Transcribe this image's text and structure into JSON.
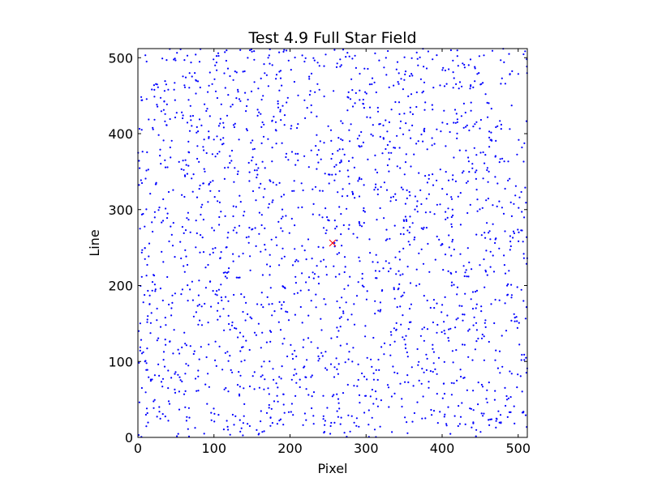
{
  "chart_data": {
    "type": "scatter",
    "title": "Test 4.9 Full Star Field",
    "xlabel": "Pixel",
    "ylabel": "Line",
    "xlim": [
      0,
      512
    ],
    "ylim": [
      0,
      512
    ],
    "x_ticks": [
      0,
      100,
      200,
      300,
      400,
      500
    ],
    "y_ticks": [
      0,
      100,
      200,
      300,
      400,
      500
    ],
    "grid": false,
    "legend": "none",
    "series": [
      {
        "marker": "dot",
        "color": "#0000ff",
        "description_of_points": "roughly uniform random field of ~2000 stars covering the full 0–512 pixel × 0–512 line area",
        "point_count": 2000,
        "seed": 49
      },
      {
        "marker": "x",
        "color": "#ff0000",
        "points": [
          [
            256,
            256
          ]
        ]
      }
    ]
  }
}
